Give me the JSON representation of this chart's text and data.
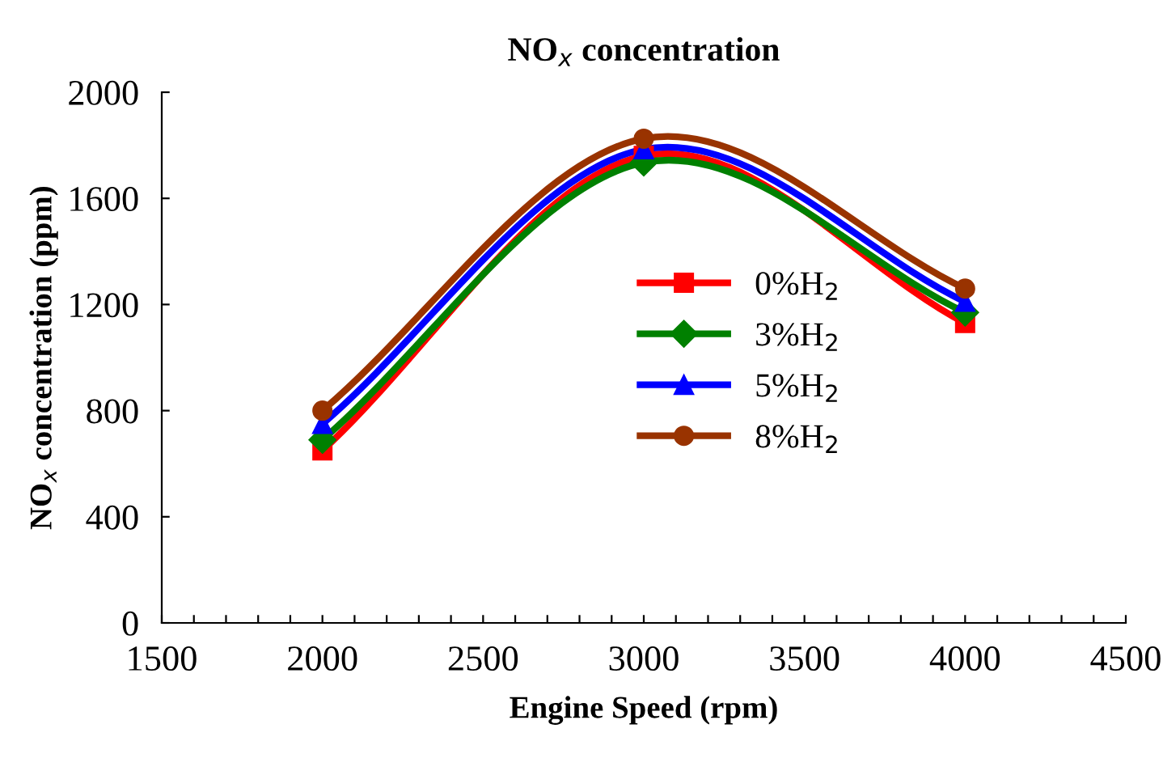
{
  "chart_data": {
    "type": "line",
    "title": "NO$_{x}$ concentration",
    "xlabel": "Engine Speed (rpm)",
    "ylabel": "NO$_{x}$ concentration (ppm)",
    "x": [
      2000,
      3000,
      4000
    ],
    "series": [
      {
        "name": "0%H$_{2}$",
        "color": "#ff0000",
        "marker": "square",
        "values": [
          650,
          1760,
          1130
        ]
      },
      {
        "name": "3%H$_{2}$",
        "color": "#008000",
        "marker": "diamond",
        "values": [
          690,
          1735,
          1170
        ]
      },
      {
        "name": "5%H$_{2}$",
        "color": "#0000ff",
        "marker": "triangle",
        "values": [
          750,
          1785,
          1210
        ]
      },
      {
        "name": "8%H$_{2}$",
        "color": "#993300",
        "marker": "circle",
        "values": [
          800,
          1825,
          1260
        ]
      }
    ],
    "xlim": [
      1500,
      4500
    ],
    "xticks": [
      1500,
      {
        "value": 1600,
        "label": null
      },
      {
        "value": 1700,
        "label": null
      },
      {
        "value": 1800,
        "label": null
      },
      {
        "value": 1900,
        "label": null
      },
      2000,
      {
        "value": 2100,
        "label": null
      },
      {
        "value": 2200,
        "label": null
      },
      {
        "value": 2300,
        "label": null
      },
      {
        "value": 2400,
        "label": null
      },
      2500,
      {
        "value": 2600,
        "label": null
      },
      {
        "value": 2700,
        "label": null
      },
      {
        "value": 2800,
        "label": null
      },
      {
        "value": 2900,
        "label": null
      },
      3000,
      {
        "value": 3100,
        "label": null
      },
      {
        "value": 3200,
        "label": null
      },
      {
        "value": 3300,
        "label": null
      },
      {
        "value": 3400,
        "label": null
      },
      3500,
      {
        "value": 3600,
        "label": null
      },
      {
        "value": 3700,
        "label": null
      },
      {
        "value": 3800,
        "label": null
      },
      {
        "value": 3900,
        "label": null
      },
      4000,
      {
        "value": 4100,
        "label": null
      },
      {
        "value": 4200,
        "label": null
      },
      {
        "value": 4300,
        "label": null
      },
      {
        "value": 4400,
        "label": null
      },
      4500
    ],
    "ylim": [
      0,
      2000
    ],
    "yticks": [
      0,
      400,
      800,
      1200,
      1600,
      2000
    ],
    "grid": false,
    "legend": "center",
    "line_style": "solid"
  }
}
